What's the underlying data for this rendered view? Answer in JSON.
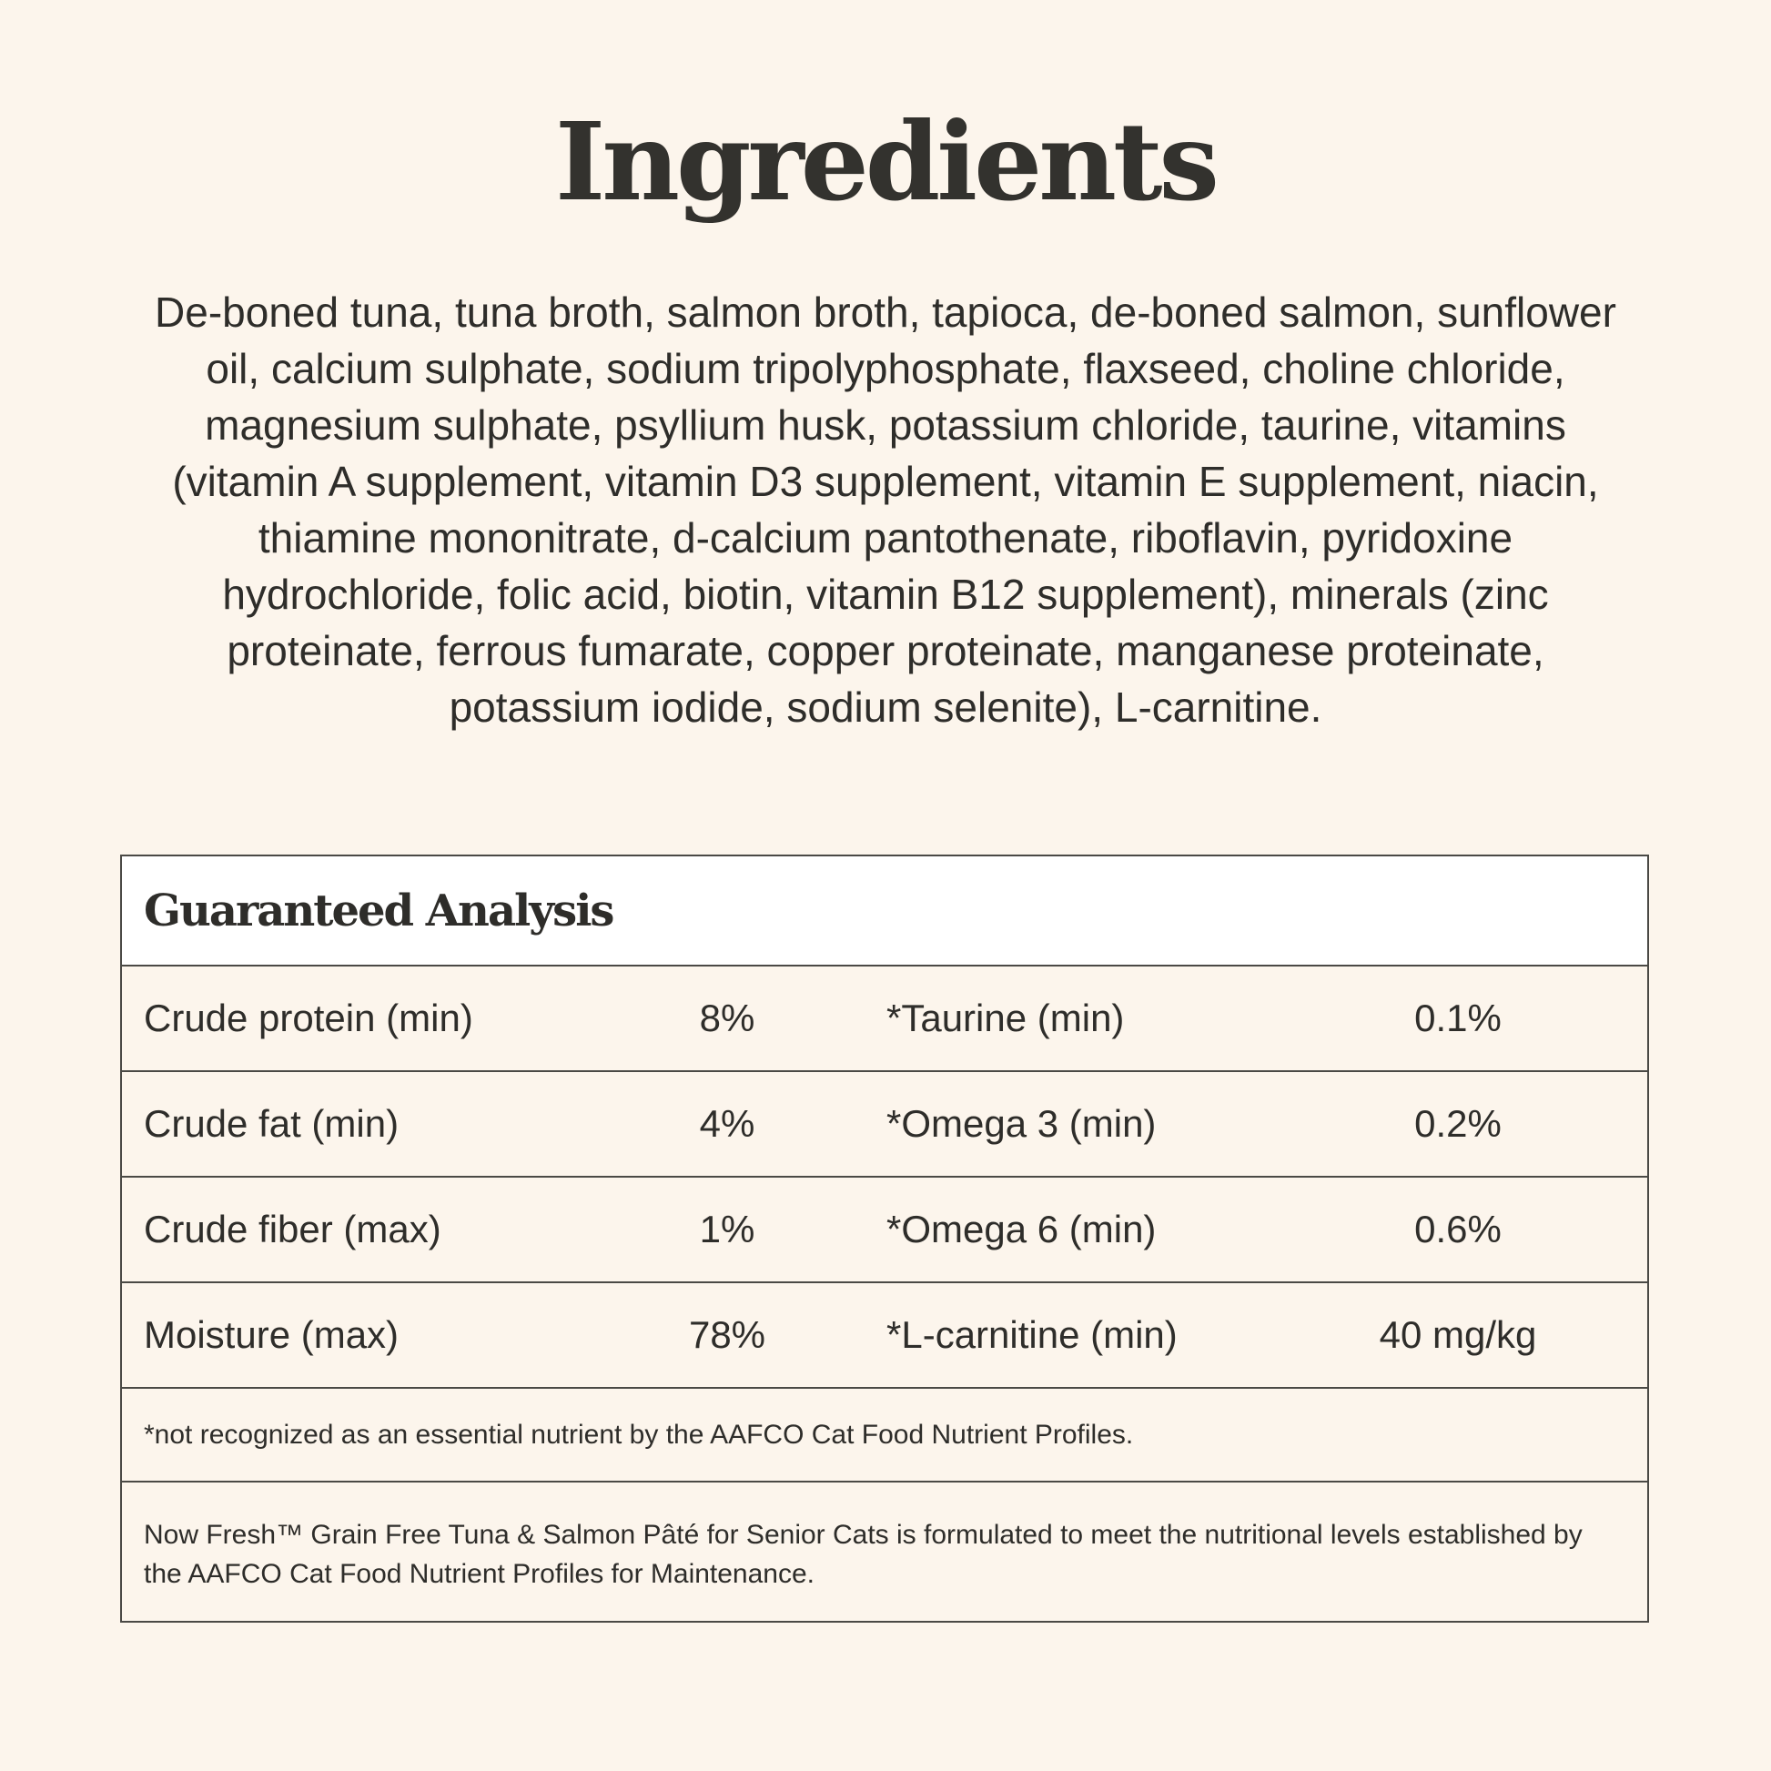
{
  "title": "Ingredients",
  "ingredients": "De-boned tuna, tuna broth, salmon broth, tapioca, de-boned salmon, sunflower oil, calcium sulphate, sodium tripolyphosphate, flaxseed, choline chloride, magnesium sulphate, psyllium husk, potassium chloride, taurine, vitamins (vitamin A supplement, vitamin D3 supplement, vitamin E supplement, niacin, thiamine mononitrate, d-calcium pantothenate, riboflavin, pyridoxine hydrochloride, folic acid, biotin, vitamin B12 supplement), minerals (zinc proteinate, ferrous fumarate, copper proteinate, manganese proteinate, potassium iodide, sodium selenite), L-carnitine.",
  "analysis": {
    "heading": "Guaranteed Analysis",
    "rows": [
      {
        "name": "Crude protein (min)",
        "value": "8%",
        "name2": "*Taurine (min)",
        "value2": "0.1%"
      },
      {
        "name": "Crude fat (min)",
        "value": "4%",
        "name2": "*Omega 3 (min)",
        "value2": "0.2%"
      },
      {
        "name": "Crude fiber (max)",
        "value": "1%",
        "name2": "*Omega 6 (min)",
        "value2": "0.6%"
      },
      {
        "name": "Moisture (max)",
        "value": "78%",
        "name2": "*L-carnitine (min)",
        "value2": "40 mg/kg"
      }
    ],
    "footnote": "*not recognized as an essential nutrient by the AAFCO Cat Food Nutrient Profiles.",
    "statement": "Now Fresh™ Grain Free Tuna & Salmon Pâté for Senior Cats is formulated to meet the nutritional levels established by the AAFCO Cat Food Nutrient Profiles for Maintenance."
  }
}
